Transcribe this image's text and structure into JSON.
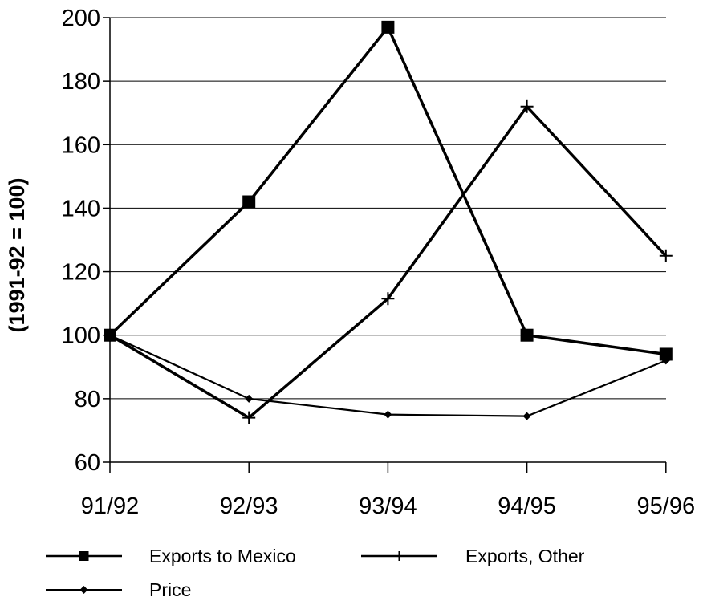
{
  "chart_data": {
    "type": "line",
    "categories": [
      "91/92",
      "92/93",
      "93/94",
      "94/95",
      "95/96"
    ],
    "ylabel": "(1991-92 = 100)",
    "ylim": [
      60,
      200
    ],
    "yticks": [
      60,
      80,
      100,
      120,
      140,
      160,
      180,
      200
    ],
    "grid": "horizontal",
    "legend_position": "bottom",
    "series": [
      {
        "name": "Exports to Mexico",
        "marker": "square",
        "line_width": "thick",
        "values": [
          100,
          142,
          197,
          100,
          94
        ]
      },
      {
        "name": "Exports, Other",
        "marker": "plus",
        "line_width": "thick",
        "values": [
          100,
          74,
          111.5,
          172,
          125
        ]
      },
      {
        "name": "Price",
        "marker": "diamond",
        "line_width": "thin",
        "values": [
          100,
          80,
          75,
          74.5,
          92
        ]
      }
    ],
    "colors": {
      "line": "#000000",
      "grid": "#000000",
      "background": "#ffffff"
    }
  }
}
